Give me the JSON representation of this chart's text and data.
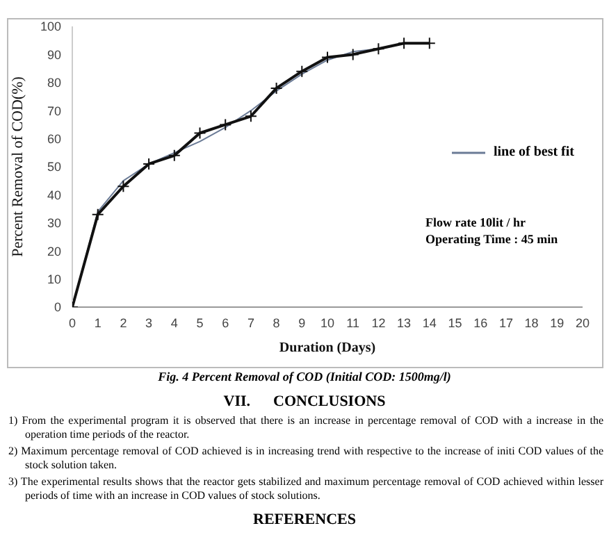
{
  "chart_data": {
    "type": "line",
    "ylabel": "Percent Removal of COD(%)",
    "xlabel": "Duration (Days)",
    "xlim": [
      0,
      20
    ],
    "xticks": [
      0,
      1,
      2,
      3,
      4,
      5,
      6,
      7,
      8,
      9,
      10,
      11,
      12,
      13,
      14,
      15,
      16,
      17,
      18,
      19,
      20
    ],
    "ylim": [
      0,
      100
    ],
    "yticks": [
      0,
      10,
      20,
      30,
      40,
      50,
      60,
      70,
      80,
      90,
      100
    ],
    "grid": false,
    "legend": "right",
    "x": [
      0,
      1,
      2,
      3,
      4,
      5,
      6,
      7,
      8,
      9,
      10,
      11,
      12,
      13,
      14
    ],
    "series": [
      {
        "color": "#111111",
        "marker": "cross",
        "values": [
          0,
          33,
          43,
          51,
          54,
          62,
          65,
          68,
          78,
          84,
          89,
          90,
          92,
          94,
          94
        ]
      },
      {
        "name": "line of best fit",
        "color": "#6b7b96",
        "marker": "none",
        "values": [
          0,
          34,
          45,
          51,
          55,
          59,
          64,
          70,
          77,
          83,
          88,
          91,
          92,
          94,
          94
        ]
      }
    ],
    "annotations": [
      "Flow rate 10lit / hr\nOperating Time : 45 min",
      "Fig. 4  Percent Removal of COD (Initial COD: 1500mg/l)",
      "VII.      CONCLUSIONS",
      "1)  From the experimental program it is observed that there is an increase in percentage removal of COD with a increase in the operation time periods of the reactor.",
      "2)  Maximum percentage removal of COD achieved is in increasing trend with respective to the increase of initi COD values of the stock solution taken.",
      "3)  The experimental results shows that the reactor gets stabilized and maximum percentage removal of COD achieved within lesser periods of time with an increase in COD values of stock solutions.",
      "REFERENCES"
    ]
  }
}
